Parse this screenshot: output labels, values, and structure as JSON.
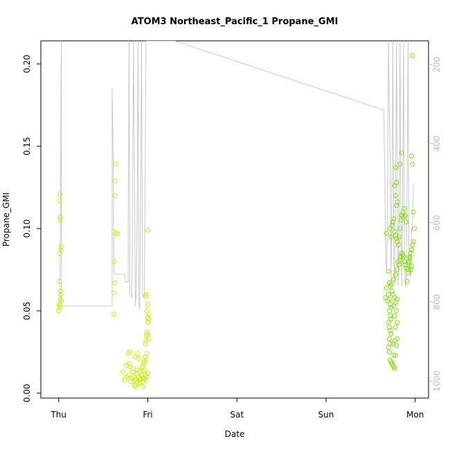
{
  "chart_data": {
    "type": "scatter",
    "title": "ATOM3 Northeast_Pacific_1 Propane_GMI",
    "xlabel": "Date",
    "ylabel": "Propane_GMI",
    "x_ticks": [
      {
        "label": "Thu",
        "day": 0
      },
      {
        "label": "Fri",
        "day": 1
      },
      {
        "label": "Sat",
        "day": 2
      },
      {
        "label": "Sun",
        "day": 3
      },
      {
        "label": "Mon",
        "day": 4
      }
    ],
    "xlim": [
      -0.2,
      4.15
    ],
    "y_ticks": [
      "0.00",
      "0.05",
      "0.10",
      "0.15",
      "0.20"
    ],
    "ylim": [
      -0.003,
      0.214
    ],
    "y2_ticks": [
      "200",
      "400",
      "600",
      "800",
      "1000"
    ],
    "y2lim": [
      1043,
      140
    ],
    "y2_color": "#bebebe",
    "grid": false,
    "legend": "none",
    "series": [
      {
        "kind": "points",
        "color": "#c8f000",
        "points": [
          [
            0.0,
            0.05
          ],
          [
            0.01,
            0.052
          ],
          [
            0.005,
            0.054
          ],
          [
            0.015,
            0.053
          ],
          [
            0.02,
            0.057
          ],
          [
            0.025,
            0.06
          ],
          [
            0.02,
            0.062
          ],
          [
            0.01,
            0.068
          ],
          [
            0.01,
            0.085
          ],
          [
            0.025,
            0.087
          ],
          [
            0.03,
            0.089
          ],
          [
            0.015,
            0.105
          ],
          [
            0.02,
            0.107
          ],
          [
            0.01,
            0.117
          ],
          [
            0.015,
            0.121
          ],
          [
            0.03,
            0.056
          ],
          [
            0.62,
            0.048
          ],
          [
            0.62,
            0.061
          ],
          [
            0.63,
            0.067
          ],
          [
            0.62,
            0.08
          ],
          [
            0.64,
            0.097
          ],
          [
            0.62,
            0.098
          ],
          [
            0.66,
            0.097
          ],
          [
            0.63,
            0.12
          ],
          [
            0.63,
            0.129
          ],
          [
            0.64,
            0.139
          ],
          [
            0.74,
            0.008
          ],
          [
            0.72,
            0.013
          ],
          [
            0.76,
            0.017
          ],
          [
            0.8,
            0.016
          ],
          [
            0.79,
            0.018
          ],
          [
            0.78,
            0.024
          ],
          [
            0.8,
            0.025
          ],
          [
            0.76,
            0.01
          ],
          [
            0.78,
            0.011
          ],
          [
            0.82,
            0.009
          ],
          [
            0.84,
            0.01
          ],
          [
            0.86,
            0.008
          ],
          [
            0.87,
            0.007
          ],
          [
            0.88,
            0.006
          ],
          [
            0.85,
            0.005
          ],
          [
            0.86,
            0.004
          ],
          [
            0.88,
            0.012
          ],
          [
            0.9,
            0.01
          ],
          [
            0.91,
            0.008
          ],
          [
            0.92,
            0.009
          ],
          [
            0.93,
            0.011
          ],
          [
            0.94,
            0.007
          ],
          [
            0.95,
            0.009
          ],
          [
            0.92,
            0.013
          ],
          [
            0.93,
            0.015
          ],
          [
            0.94,
            0.016
          ],
          [
            0.95,
            0.018
          ],
          [
            0.96,
            0.019
          ],
          [
            0.96,
            0.014
          ],
          [
            0.9,
            0.021
          ],
          [
            0.89,
            0.024
          ],
          [
            0.97,
            0.022
          ],
          [
            0.98,
            0.02
          ],
          [
            0.99,
            0.024
          ],
          [
            0.97,
            0.03
          ],
          [
            0.98,
            0.032
          ],
          [
            0.99,
            0.035
          ],
          [
            1.0,
            0.036
          ],
          [
            1.01,
            0.033
          ],
          [
            0.99,
            0.037
          ],
          [
            1.0,
            0.043
          ],
          [
            1.01,
            0.045
          ],
          [
            1.0,
            0.046
          ],
          [
            1.01,
            0.048
          ],
          [
            0.99,
            0.05
          ],
          [
            1.0,
            0.054
          ],
          [
            0.97,
            0.011
          ],
          [
            0.96,
            0.009
          ],
          [
            0.98,
            0.008
          ],
          [
            0.99,
            0.01
          ],
          [
            1.0,
            0.012
          ],
          [
            0.86,
            0.022
          ],
          [
            0.84,
            0.015
          ],
          [
            0.83,
            0.013
          ],
          [
            0.81,
            0.007
          ],
          [
            0.97,
            0.059
          ],
          [
            0.99,
            0.06
          ],
          [
            1.0,
            0.099
          ],
          [
            0.91,
            0.006
          ],
          [
            0.88,
            0.014
          ],
          [
            0.95,
            0.004
          ]
        ]
      },
      {
        "kind": "points",
        "color": "#7ee000",
        "points": [
          [
            3.68,
            0.064
          ],
          [
            3.67,
            0.058
          ],
          [
            3.69,
            0.056
          ],
          [
            3.68,
            0.097
          ],
          [
            3.7,
            0.074
          ],
          [
            3.71,
            0.067
          ],
          [
            3.72,
            0.065
          ],
          [
            3.7,
            0.06
          ],
          [
            3.71,
            0.057
          ],
          [
            3.72,
            0.054
          ],
          [
            3.73,
            0.052
          ],
          [
            3.71,
            0.05
          ],
          [
            3.72,
            0.047
          ],
          [
            3.73,
            0.045
          ],
          [
            3.7,
            0.043
          ],
          [
            3.71,
            0.04
          ],
          [
            3.72,
            0.038
          ],
          [
            3.73,
            0.036
          ],
          [
            3.71,
            0.033
          ],
          [
            3.72,
            0.03
          ],
          [
            3.7,
            0.028
          ],
          [
            3.71,
            0.025
          ],
          [
            3.72,
            0.02
          ],
          [
            3.73,
            0.019
          ],
          [
            3.74,
            0.018
          ],
          [
            3.75,
            0.017
          ],
          [
            3.76,
            0.016
          ],
          [
            3.77,
            0.015
          ],
          [
            3.76,
            0.023
          ],
          [
            3.78,
            0.023
          ],
          [
            3.75,
            0.03
          ],
          [
            3.77,
            0.032
          ],
          [
            3.79,
            0.029
          ],
          [
            3.8,
            0.033
          ],
          [
            3.78,
            0.04
          ],
          [
            3.8,
            0.043
          ],
          [
            3.77,
            0.047
          ],
          [
            3.79,
            0.05
          ],
          [
            3.76,
            0.053
          ],
          [
            3.78,
            0.055
          ],
          [
            3.8,
            0.057
          ],
          [
            3.77,
            0.058
          ],
          [
            3.75,
            0.06
          ],
          [
            3.74,
            0.062
          ],
          [
            3.73,
            0.066
          ],
          [
            3.76,
            0.069
          ],
          [
            3.78,
            0.072
          ],
          [
            3.8,
            0.075
          ],
          [
            3.82,
            0.078
          ],
          [
            3.81,
            0.08
          ],
          [
            3.83,
            0.081
          ],
          [
            3.84,
            0.083
          ],
          [
            3.85,
            0.085
          ],
          [
            3.86,
            0.084
          ],
          [
            3.87,
            0.083
          ],
          [
            3.88,
            0.08
          ],
          [
            3.89,
            0.078
          ],
          [
            3.9,
            0.076
          ],
          [
            3.91,
            0.068
          ],
          [
            3.92,
            0.075
          ],
          [
            3.93,
            0.08
          ],
          [
            3.94,
            0.082
          ],
          [
            3.95,
            0.085
          ],
          [
            3.96,
            0.087
          ],
          [
            3.97,
            0.09
          ],
          [
            3.98,
            0.092
          ],
          [
            3.73,
            0.095
          ],
          [
            3.72,
            0.1
          ],
          [
            3.74,
            0.102
          ],
          [
            3.75,
            0.104
          ],
          [
            3.76,
            0.106
          ],
          [
            3.77,
            0.098
          ],
          [
            3.78,
            0.096
          ],
          [
            3.79,
            0.094
          ],
          [
            3.8,
            0.092
          ],
          [
            3.81,
            0.09
          ],
          [
            3.82,
            0.095
          ],
          [
            3.83,
            0.1
          ],
          [
            3.84,
            0.105
          ],
          [
            3.85,
            0.108
          ],
          [
            3.86,
            0.11
          ],
          [
            3.87,
            0.107
          ],
          [
            3.88,
            0.112
          ],
          [
            3.89,
            0.108
          ],
          [
            3.9,
            0.104
          ],
          [
            3.79,
            0.114
          ],
          [
            3.8,
            0.116
          ],
          [
            3.78,
            0.12
          ],
          [
            3.77,
            0.126
          ],
          [
            3.79,
            0.128
          ],
          [
            3.78,
            0.137
          ],
          [
            3.83,
            0.139
          ],
          [
            3.85,
            0.146
          ],
          [
            3.96,
            0.144
          ],
          [
            3.97,
            0.139
          ],
          [
            3.98,
            0.11
          ],
          [
            3.99,
            0.1
          ],
          [
            3.97,
            0.205
          ],
          [
            3.96,
            0.077
          ],
          [
            3.95,
            0.075
          ],
          [
            3.94,
            0.083
          ],
          [
            3.93,
            0.079
          ],
          [
            3.92,
            0.073
          ]
        ]
      }
    ],
    "line": {
      "axis": "y2",
      "color": "#c8c8c8",
      "points": [
        [
          0.0,
          810
        ],
        [
          0.01,
          800
        ],
        [
          0.02,
          600
        ],
        [
          0.025,
          280
        ],
        [
          0.03,
          140
        ],
        [
          0.03,
          810
        ],
        [
          0.6,
          810
        ],
        [
          0.6,
          810
        ],
        [
          0.6,
          260
        ],
        [
          0.61,
          400
        ],
        [
          0.62,
          730
        ],
        [
          0.74,
          730
        ],
        [
          0.75,
          750
        ],
        [
          0.78,
          750
        ],
        [
          0.78,
          600
        ],
        [
          0.79,
          140
        ],
        [
          0.8,
          780
        ],
        [
          0.82,
          790
        ],
        [
          0.83,
          500
        ],
        [
          0.84,
          140
        ],
        [
          0.86,
          810
        ],
        [
          0.87,
          780
        ],
        [
          0.88,
          600
        ],
        [
          0.89,
          140
        ],
        [
          0.9,
          800
        ],
        [
          0.91,
          820
        ],
        [
          0.92,
          500
        ],
        [
          0.93,
          140
        ],
        [
          0.94,
          780
        ],
        [
          0.96,
          790
        ],
        [
          0.97,
          500
        ],
        [
          0.98,
          140
        ],
        [
          1.0,
          140
        ],
        [
          1.3,
          140
        ],
        [
          3.65,
          315
        ],
        [
          3.65,
          330
        ],
        [
          3.66,
          500
        ],
        [
          3.67,
          700
        ],
        [
          3.68,
          720
        ],
        [
          3.69,
          500
        ],
        [
          3.7,
          140
        ],
        [
          3.72,
          450
        ],
        [
          3.73,
          750
        ],
        [
          3.74,
          500
        ],
        [
          3.75,
          140
        ],
        [
          3.76,
          700
        ],
        [
          3.77,
          760
        ],
        [
          3.78,
          500
        ],
        [
          3.79,
          140
        ],
        [
          3.8,
          500
        ],
        [
          3.81,
          760
        ],
        [
          3.82,
          600
        ],
        [
          3.83,
          140
        ],
        [
          3.84,
          600
        ],
        [
          3.85,
          760
        ],
        [
          3.86,
          500
        ],
        [
          3.87,
          140
        ],
        [
          3.88,
          700
        ],
        [
          3.89,
          760
        ],
        [
          3.9,
          760
        ],
        [
          3.91,
          500
        ],
        [
          3.92,
          140
        ],
        [
          3.93,
          700
        ],
        [
          3.95,
          740
        ],
        [
          3.96,
          620
        ],
        [
          3.97,
          600
        ],
        [
          3.98,
          500
        ]
      ]
    }
  }
}
